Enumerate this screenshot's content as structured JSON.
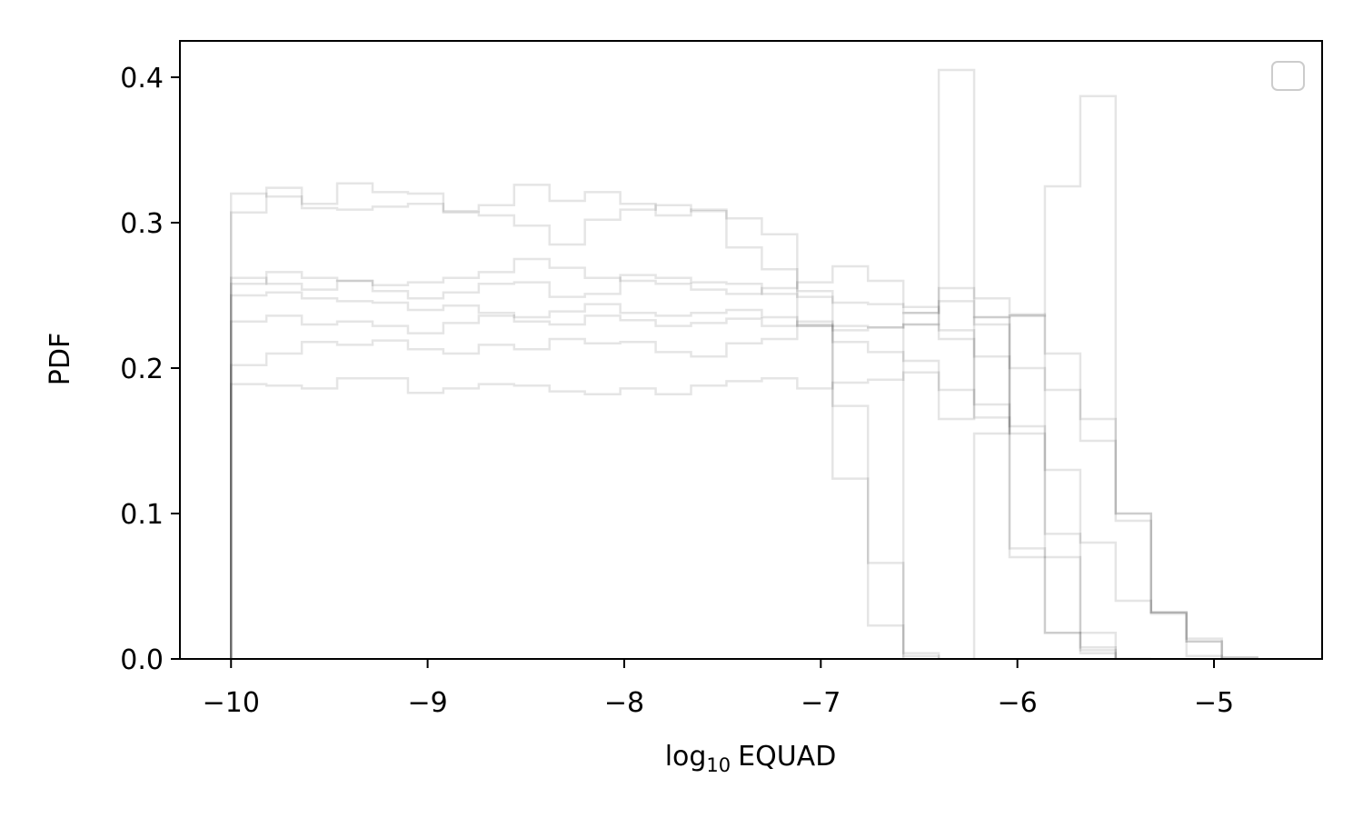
{
  "chart_data": {
    "type": "step",
    "title": "",
    "xlabel": {
      "prefix": "log",
      "subscript": "10",
      "suffix": "EQUAD"
    },
    "ylabel": "PDF",
    "xlim": [
      -10.26,
      -4.45
    ],
    "ylim": [
      0,
      0.425
    ],
    "xticks": [
      -10,
      -9,
      -8,
      -7,
      -6,
      -5
    ],
    "xtick_labels": [
      "−10",
      "−9",
      "−8",
      "−7",
      "−6",
      "−5"
    ],
    "yticks": [
      0.0,
      0.1,
      0.2,
      0.3,
      0.4
    ],
    "ytick_labels": [
      "0.0",
      "0.1",
      "0.2",
      "0.3",
      "0.4"
    ],
    "grid": false,
    "legend": {
      "placement": "top-right",
      "entries": []
    },
    "line_color": "#000000",
    "line_opacity": 0.1,
    "series": [
      {
        "edges": [
          -10.0,
          -9.82,
          -9.64,
          -9.46,
          -9.28,
          -9.1,
          -8.92,
          -8.74,
          -8.56,
          -8.38,
          -8.2,
          -8.02,
          -7.84,
          -7.66,
          -7.48,
          -7.3,
          -7.12,
          -6.94,
          -6.76,
          -6.58,
          -6.4
        ],
        "heights": [
          0.32,
          0.318,
          0.31,
          0.309,
          0.311,
          0.313,
          0.308,
          0.312,
          0.326,
          0.315,
          0.321,
          0.313,
          0.305,
          0.309,
          0.303,
          0.292,
          0.253,
          0.174,
          0.066,
          0.004
        ]
      },
      {
        "edges": [
          -10.0,
          -9.82,
          -9.64,
          -9.46,
          -9.28,
          -9.1,
          -8.92,
          -8.74,
          -8.56,
          -8.38,
          -8.2,
          -8.02,
          -7.84,
          -7.66,
          -7.48,
          -7.3,
          -7.12,
          -6.94,
          -6.76,
          -6.58,
          -6.4
        ],
        "heights": [
          0.307,
          0.324,
          0.313,
          0.327,
          0.321,
          0.32,
          0.307,
          0.305,
          0.298,
          0.285,
          0.302,
          0.309,
          0.312,
          0.308,
          0.283,
          0.268,
          0.229,
          0.124,
          0.023,
          0.002
        ]
      },
      {
        "edges": [
          -10.0,
          -9.82,
          -9.64,
          -9.46,
          -9.28,
          -9.1,
          -8.92,
          -8.74,
          -8.56,
          -8.38,
          -8.2,
          -8.02,
          -7.84,
          -7.66,
          -7.48,
          -7.3,
          -7.12,
          -6.94,
          -6.76,
          -6.58,
          -6.4,
          -6.22,
          -6.04,
          -5.86,
          -5.68,
          -5.5
        ],
        "heights": [
          0.262,
          0.258,
          0.254,
          0.26,
          0.257,
          0.259,
          0.262,
          0.266,
          0.275,
          0.269,
          0.262,
          0.26,
          0.258,
          0.254,
          0.251,
          0.255,
          0.259,
          0.27,
          0.26,
          0.242,
          0.226,
          0.208,
          0.155,
          0.086,
          0.018
        ]
      },
      {
        "edges": [
          -10.0,
          -9.82,
          -9.64,
          -9.46,
          -9.28,
          -9.1,
          -8.92,
          -8.74,
          -8.56,
          -8.38,
          -8.2,
          -8.02,
          -7.84,
          -7.66,
          -7.48,
          -7.3,
          -7.12,
          -6.94,
          -6.76,
          -6.58,
          -6.4,
          -6.22,
          -6.04,
          -5.86,
          -5.68,
          -5.5
        ],
        "heights": [
          0.258,
          0.266,
          0.262,
          0.26,
          0.253,
          0.248,
          0.252,
          0.258,
          0.259,
          0.249,
          0.251,
          0.264,
          0.262,
          0.259,
          0.258,
          0.251,
          0.249,
          0.245,
          0.244,
          0.238,
          0.246,
          0.235,
          0.2,
          0.07,
          0.008
        ]
      },
      {
        "edges": [
          -10.0,
          -9.82,
          -9.64,
          -9.46,
          -9.28,
          -9.1,
          -8.92,
          -8.74,
          -8.56,
          -8.38,
          -8.2,
          -8.02,
          -7.84,
          -7.66,
          -7.48,
          -7.3,
          -7.12,
          -6.94,
          -6.76,
          -6.58,
          -6.4,
          -6.22,
          -6.04,
          -5.86,
          -5.68,
          -5.5,
          -5.32,
          -5.14,
          -4.96
        ],
        "heights": [
          0.25,
          0.252,
          0.248,
          0.246,
          0.245,
          0.24,
          0.243,
          0.238,
          0.235,
          0.239,
          0.244,
          0.238,
          0.236,
          0.238,
          0.24,
          0.235,
          0.23,
          0.226,
          0.228,
          0.238,
          0.255,
          0.248,
          0.237,
          0.185,
          0.15,
          0.1,
          0.032,
          0.012
        ]
      },
      {
        "edges": [
          -10.0,
          -9.82,
          -9.64,
          -9.46,
          -9.28,
          -9.1,
          -8.92,
          -8.74,
          -8.56,
          -8.38,
          -8.2,
          -8.02,
          -7.84,
          -7.66,
          -7.48,
          -7.3,
          -7.12,
          -6.94,
          -6.76,
          -6.58,
          -6.4,
          -6.22,
          -6.04,
          -5.86,
          -5.68,
          -5.5
        ],
        "heights": [
          0.232,
          0.236,
          0.23,
          0.232,
          0.229,
          0.224,
          0.231,
          0.236,
          0.232,
          0.23,
          0.236,
          0.233,
          0.229,
          0.231,
          0.234,
          0.229,
          0.232,
          0.229,
          0.228,
          0.23,
          0.22,
          0.166,
          0.076,
          0.018,
          0.006
        ]
      },
      {
        "edges": [
          -10.0,
          -9.82,
          -9.64,
          -9.46,
          -9.28,
          -9.1,
          -8.92,
          -8.74,
          -8.56,
          -8.38,
          -8.2,
          -8.02,
          -7.84,
          -7.66,
          -7.48,
          -7.3,
          -7.12,
          -6.94,
          -6.76,
          -6.58,
          -6.4,
          -6.22,
          -6.04,
          -5.86,
          -5.68,
          -5.5,
          -5.32,
          -5.14,
          -4.96,
          -4.78
        ],
        "heights": [
          0.202,
          0.21,
          0.218,
          0.216,
          0.219,
          0.213,
          0.21,
          0.216,
          0.213,
          0.22,
          0.217,
          0.218,
          0.211,
          0.208,
          0.217,
          0.22,
          0.229,
          0.218,
          0.211,
          0.205,
          0.165,
          0.235,
          0.236,
          0.21,
          0.165,
          0.1,
          0.031,
          0.014,
          0.001
        ]
      },
      {
        "edges": [
          -10.0,
          -9.82,
          -9.64,
          -9.46,
          -9.28,
          -9.1,
          -8.92,
          -8.74,
          -8.56,
          -8.38,
          -8.2,
          -8.02,
          -7.84,
          -7.66,
          -7.48,
          -7.3,
          -7.12,
          -6.94,
          -6.76,
          -6.58,
          -6.4,
          -6.22,
          -6.04,
          -5.86,
          -5.68,
          -5.5,
          -5.32,
          -5.14,
          -4.96,
          -4.78
        ],
        "heights": [
          0.189,
          0.188,
          0.186,
          0.193,
          0.193,
          0.183,
          0.186,
          0.189,
          0.188,
          0.184,
          0.182,
          0.186,
          0.182,
          0.188,
          0.191,
          0.193,
          0.186,
          0.19,
          0.192,
          0.197,
          0.185,
          0.175,
          0.16,
          0.13,
          0.08,
          0.04,
          0.032,
          0.002,
          0.001
        ]
      },
      {
        "edges": [
          -6.58,
          -6.4,
          -6.22,
          -6.04,
          -5.86,
          -5.68,
          -5.5,
          -5.32
        ],
        "heights": [
          0.23,
          0.405,
          0.23,
          0.07,
          0.018,
          0.004,
          0.0
        ]
      },
      {
        "edges": [
          -6.22,
          -6.04,
          -5.86,
          -5.68,
          -5.5,
          -5.32,
          -5.14,
          -4.96
        ],
        "heights": [
          0.155,
          0.236,
          0.325,
          0.387,
          0.095,
          0.032,
          0.012
        ]
      }
    ]
  }
}
